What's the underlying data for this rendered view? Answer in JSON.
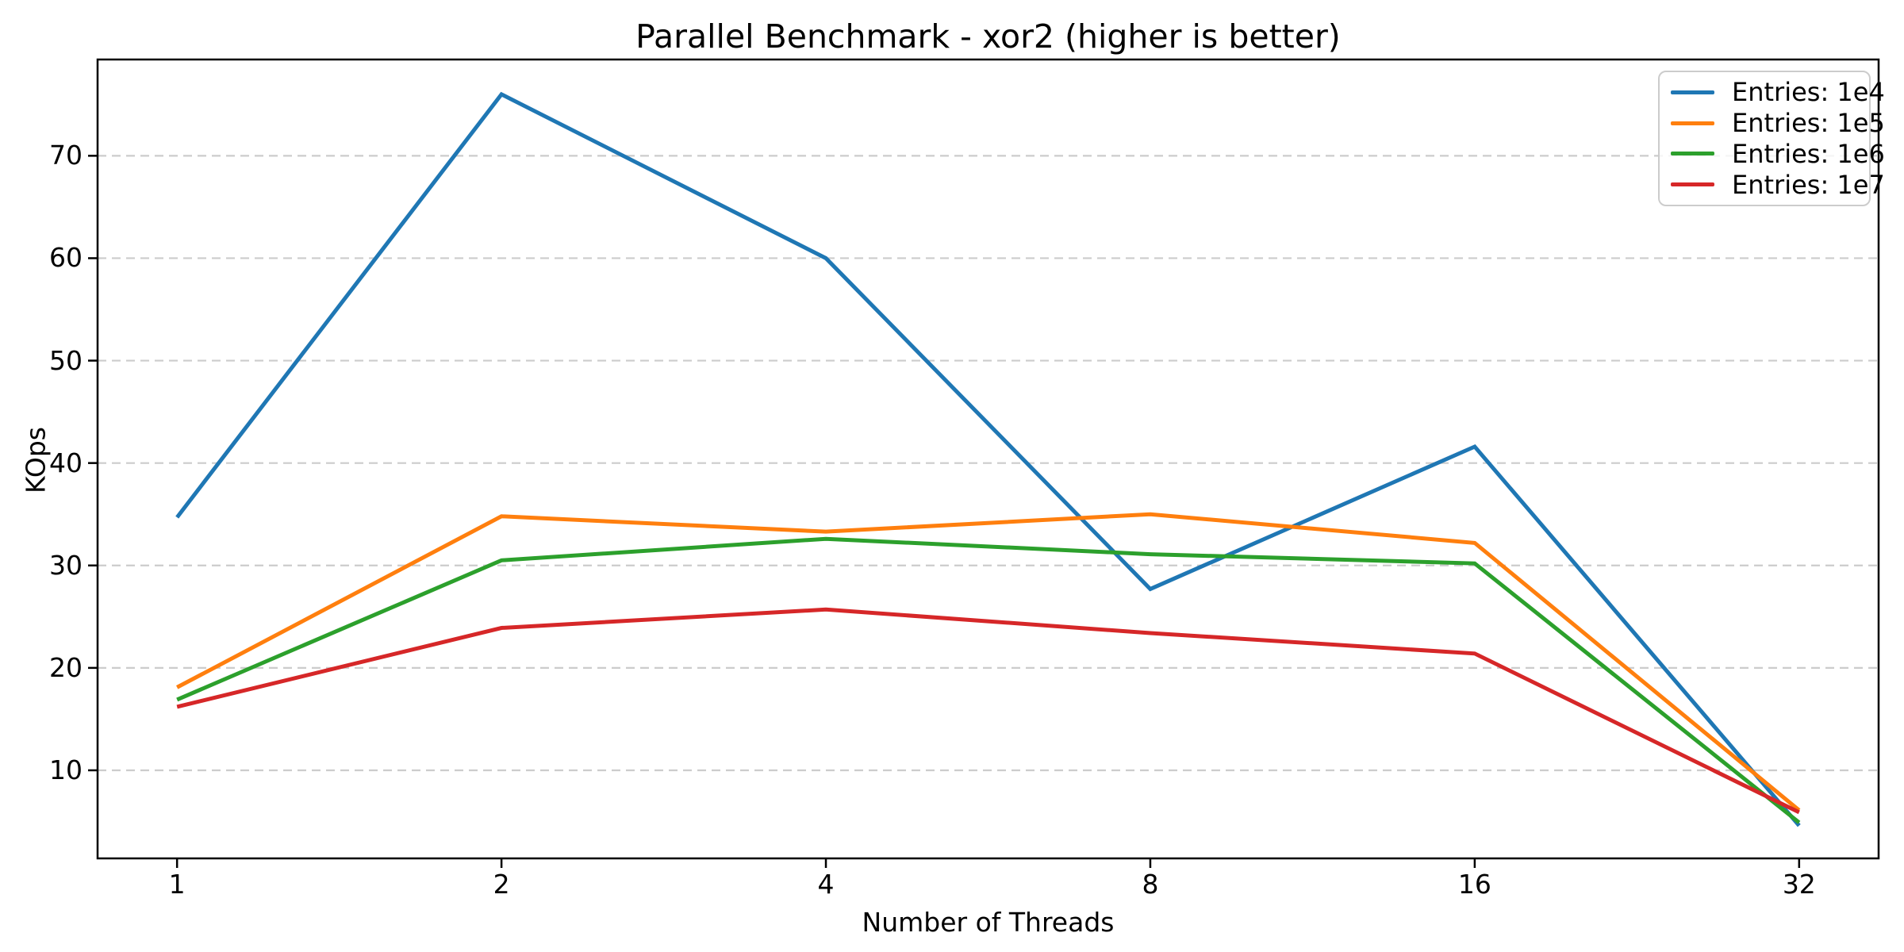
{
  "chart_data": {
    "type": "line",
    "title": "Parallel Benchmark - xor2 (higher is better)",
    "xlabel": "Number of Threads",
    "ylabel": "KOps",
    "x_scale": "log2",
    "x": [
      1,
      2,
      4,
      8,
      16,
      32
    ],
    "x_tick_labels": [
      "1",
      "2",
      "4",
      "8",
      "16",
      "32"
    ],
    "y_ticks": [
      10,
      20,
      30,
      40,
      50,
      60,
      70
    ],
    "xlim_log2": [
      -0.245,
      5.245
    ],
    "ylim": [
      1.4,
      79.4
    ],
    "grid": "horizontal-dashed",
    "grid_color": "#cccccc",
    "background_color": "#ffffff",
    "legend_position": "upper-right",
    "series": [
      {
        "name": "Entries: 1e4",
        "color": "#1f77b4",
        "values": [
          34.7,
          76.0,
          60.0,
          27.7,
          41.6,
          4.6
        ]
      },
      {
        "name": "Entries: 1e5",
        "color": "#ff7f0e",
        "values": [
          18.1,
          34.8,
          33.3,
          35.0,
          32.2,
          6.1
        ]
      },
      {
        "name": "Entries: 1e6",
        "color": "#2ca02c",
        "values": [
          16.9,
          30.5,
          32.6,
          31.1,
          30.2,
          4.9
        ]
      },
      {
        "name": "Entries: 1e7",
        "color": "#d62728",
        "values": [
          16.2,
          23.9,
          25.7,
          23.4,
          21.4,
          5.9
        ]
      }
    ]
  }
}
